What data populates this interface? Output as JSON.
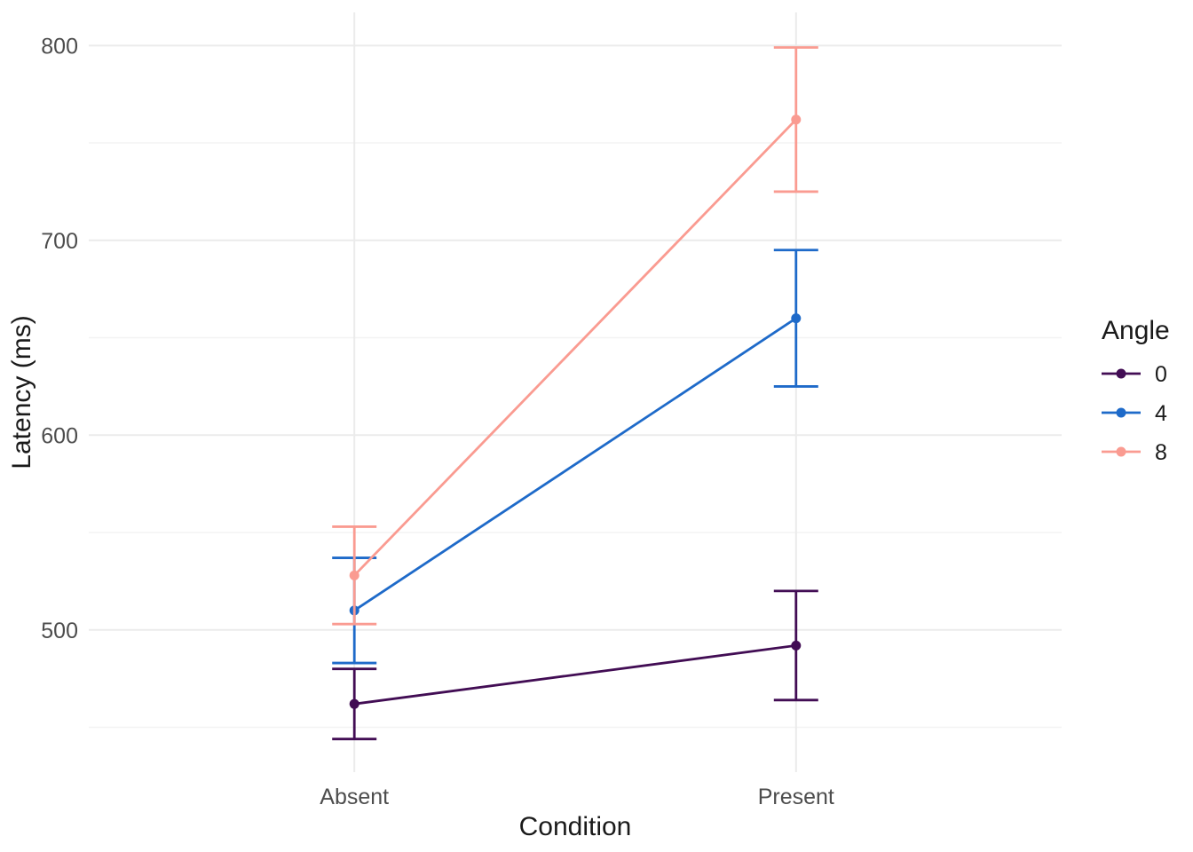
{
  "figure": {
    "background": "#FFFFFF",
    "kind": "interaction line plot with error bars"
  },
  "chart_data": {
    "type": "line",
    "title": "",
    "xlabel": "Condition",
    "ylabel": "Latency (ms)",
    "categories": [
      "Absent",
      "Present"
    ],
    "series": [
      {
        "name": "0",
        "color": "#420D54",
        "values": [
          462,
          492
        ],
        "ci_low": [
          444,
          464
        ],
        "ci_high": [
          480,
          520
        ]
      },
      {
        "name": "4",
        "color": "#1E6AC9",
        "values": [
          510,
          660
        ],
        "ci_low": [
          483,
          625
        ],
        "ci_high": [
          537,
          695
        ]
      },
      {
        "name": "8",
        "color": "#FA9B91",
        "values": [
          528,
          762
        ],
        "ci_low": [
          503,
          725
        ],
        "ci_high": [
          553,
          799
        ]
      }
    ],
    "y_ticks": [
      500,
      600,
      700,
      800
    ],
    "y_minor_ticks": [
      450,
      550,
      650,
      750
    ],
    "ylim": [
      427,
      817
    ],
    "legend": {
      "title": "Angle",
      "position": "right",
      "entries": [
        "0",
        "4",
        "8"
      ]
    },
    "style": {
      "grid_major_color": "#EBEBEB",
      "grid_minor_color": "#F3F3F3",
      "axis_text_color": "#4D4D4D",
      "axis_title_color": "#1A1A1A",
      "grid": "on"
    }
  }
}
